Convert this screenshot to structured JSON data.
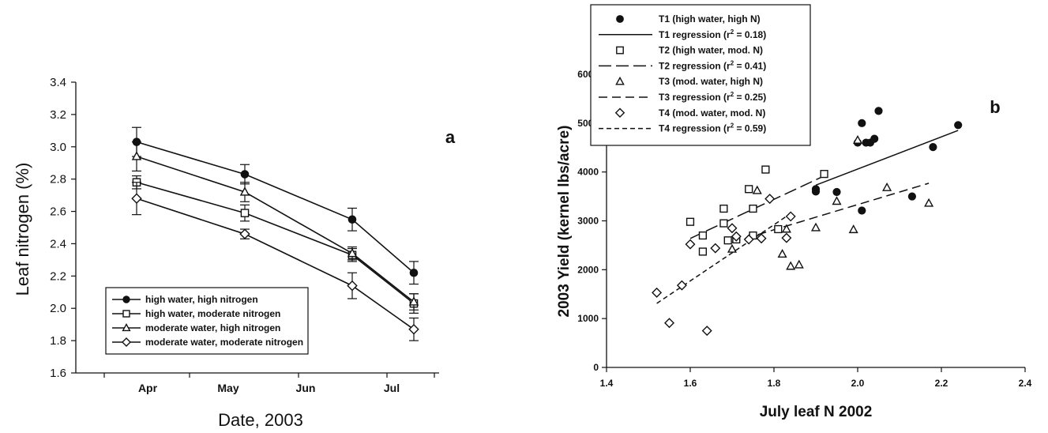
{
  "chart_data": [
    {
      "type": "line",
      "panel_label": "a",
      "xlabel": "Date, 2003",
      "ylabel": "Leaf nitrogen (%)",
      "categories": [
        "Apr",
        "May",
        "Jun",
        "Jul"
      ],
      "ylim": [
        1.6,
        3.4
      ],
      "yticks": [
        "1.6",
        "1.8",
        "2.0",
        "2.2",
        "2.4",
        "2.6",
        "2.8",
        "3.0",
        "3.2",
        "3.4"
      ],
      "grid": false,
      "legend_position": "bottom-left",
      "series": [
        {
          "name": "high water, high nitrogen",
          "marker": "filled-circle",
          "x": [
            "Apr",
            "May",
            "Jun",
            "Jul"
          ],
          "values": [
            3.03,
            2.83,
            2.55,
            2.22
          ],
          "errors": [
            0.09,
            0.06,
            0.07,
            0.07
          ]
        },
        {
          "name": "high water, moderate nitrogen",
          "marker": "open-square",
          "x": [
            "Apr",
            "May",
            "Jun",
            "Jul"
          ],
          "values": [
            2.78,
            2.59,
            2.33,
            2.03
          ],
          "errors": [
            0.04,
            0.05,
            0.04,
            0.06
          ]
        },
        {
          "name": "moderate water, high nitrogen",
          "marker": "open-triangle",
          "x": [
            "Apr",
            "May",
            "Jun",
            "Jul"
          ],
          "values": [
            2.94,
            2.72,
            2.34,
            2.04
          ],
          "errors": [
            0.09,
            0.06,
            0.04,
            0.05
          ]
        },
        {
          "name": "moderate water, moderate nitrogen",
          "marker": "open-diamond",
          "x": [
            "Apr",
            "May",
            "Jun",
            "Jul"
          ],
          "values": [
            2.68,
            2.46,
            2.14,
            1.87
          ],
          "errors": [
            0.1,
            0.03,
            0.08,
            0.07
          ]
        }
      ]
    },
    {
      "type": "scatter",
      "panel_label": "b",
      "xlabel": "July leaf N 2002",
      "ylabel": "2003 Yield (kernel lbs/acre)",
      "xlim": [
        1.4,
        2.4
      ],
      "ylim": [
        0,
        6000
      ],
      "xticks": [
        "1.4",
        "1.6",
        "1.8",
        "2.0",
        "2.2",
        "2.4"
      ],
      "yticks": [
        "0",
        "1000",
        "2000",
        "3000",
        "4000",
        "5000",
        "6000"
      ],
      "grid": false,
      "legend_position": "top-left",
      "series": [
        {
          "name": "T1 (high water, high N)",
          "marker": "filled-circle",
          "points": [
            [
              2.0,
              4600
            ],
            [
              2.01,
              5000
            ],
            [
              2.02,
              4600
            ],
            [
              2.03,
              4600
            ],
            [
              2.04,
              4680
            ],
            [
              2.05,
              5250
            ],
            [
              2.24,
              4960
            ],
            [
              2.18,
              4510
            ],
            [
              1.9,
              3600
            ],
            [
              1.9,
              3650
            ],
            [
              1.95,
              3590
            ],
            [
              2.01,
              3210
            ],
            [
              2.13,
              3500
            ]
          ],
          "regression": {
            "label": "T1 regression (r",
            "r2_label": "2",
            "r2_value": " = 0.18)",
            "style": "solid",
            "x": [
              1.9,
              2.24
            ],
            "y": [
              3730,
              4850
            ]
          }
        },
        {
          "name": "T2 (high water, mod. N)",
          "marker": "open-square",
          "points": [
            [
              1.6,
              2980
            ],
            [
              1.63,
              2700
            ],
            [
              1.63,
              2370
            ],
            [
              1.68,
              3250
            ],
            [
              1.68,
              2950
            ],
            [
              1.69,
              2600
            ],
            [
              1.71,
              2620
            ],
            [
              1.74,
              3650
            ],
            [
              1.75,
              3250
            ],
            [
              1.75,
              2700
            ],
            [
              1.78,
              4050
            ],
            [
              1.81,
              2830
            ],
            [
              1.92,
              3960
            ]
          ],
          "regression": {
            "label": "T2 regression (r",
            "r2_label": "2",
            "r2_value": " = 0.41)",
            "style": "longdash",
            "x": [
              1.6,
              1.93
            ],
            "y": [
              2640,
              3960
            ]
          }
        },
        {
          "name": "T3 (mod. water, high N)",
          "marker": "open-triangle",
          "points": [
            [
              1.7,
              2420
            ],
            [
              1.76,
              3620
            ],
            [
              1.82,
              2320
            ],
            [
              1.83,
              2830
            ],
            [
              1.84,
              2070
            ],
            [
              1.86,
              2100
            ],
            [
              1.9,
              2860
            ],
            [
              1.95,
              3400
            ],
            [
              1.99,
              2820
            ],
            [
              2.0,
              4650
            ],
            [
              2.07,
              3680
            ],
            [
              2.17,
              3360
            ]
          ],
          "regression": {
            "label": "T3 regression (r",
            "r2_label": "2",
            "r2_value": " = 0.25)",
            "style": "mediumdash",
            "x": [
              1.7,
              2.17
            ],
            "y": [
              2560,
              3770
            ]
          }
        },
        {
          "name": "T4 (mod. water, mod. N)",
          "marker": "open-diamond",
          "points": [
            [
              1.52,
              1530
            ],
            [
              1.55,
              910
            ],
            [
              1.58,
              1680
            ],
            [
              1.6,
              2520
            ],
            [
              1.64,
              750
            ],
            [
              1.66,
              2440
            ],
            [
              1.7,
              2850
            ],
            [
              1.71,
              2680
            ],
            [
              1.74,
              2620
            ],
            [
              1.77,
              2640
            ],
            [
              1.79,
              3450
            ],
            [
              1.83,
              2650
            ],
            [
              1.84,
              3090
            ]
          ],
          "regression": {
            "label": "T4 regression (r",
            "r2_label": "2",
            "r2_value": " = 0.59)",
            "style": "shortdash",
            "x": [
              1.52,
              1.84
            ],
            "y": [
              1310,
              3150
            ]
          }
        }
      ]
    }
  ]
}
